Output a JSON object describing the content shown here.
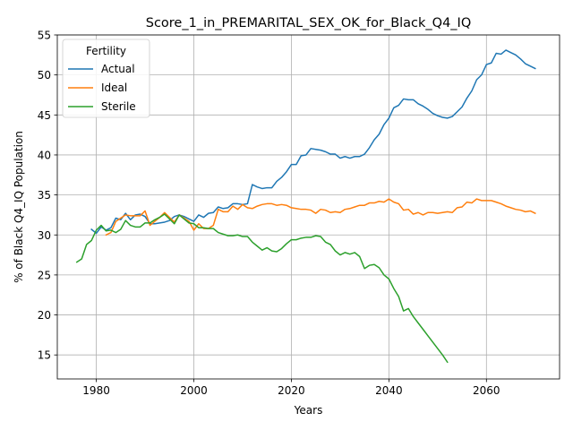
{
  "chart_data": {
    "type": "line",
    "title": "Score_1_in_PREMARITAL_SEX_OK_for_Black_Q4_IQ",
    "xlabel": "Years",
    "ylabel": "% of Black Q4_IQ Population",
    "xlim": [
      1972,
      2075
    ],
    "ylim": [
      12,
      55
    ],
    "xticks": [
      1980,
      2000,
      2020,
      2040,
      2060
    ],
    "yticks": [
      15,
      20,
      25,
      30,
      35,
      40,
      45,
      50,
      55
    ],
    "grid": true,
    "legend": {
      "title": "Fertility",
      "position": "top-left"
    },
    "series": [
      {
        "name": "Actual",
        "color": "#1f77b4",
        "x": [
          1979,
          1980,
          1981,
          1982,
          1983,
          1984,
          1985,
          1986,
          1987,
          1988,
          1989,
          1990,
          1991,
          1992,
          1993,
          1994,
          1995,
          1996,
          1997,
          1998,
          1999,
          2000,
          2001,
          2002,
          2003,
          2004,
          2005,
          2006,
          2007,
          2008,
          2009,
          2010,
          2011,
          2012,
          2013,
          2014,
          2015,
          2016,
          2017,
          2018,
          2019,
          2020,
          2021,
          2022,
          2023,
          2024,
          2025,
          2026,
          2027,
          2028,
          2029,
          2030,
          2031,
          2032,
          2033,
          2034,
          2035,
          2036,
          2037,
          2038,
          2039,
          2040,
          2041,
          2042,
          2043,
          2044,
          2045,
          2046,
          2047,
          2048,
          2049,
          2050,
          2051,
          2052,
          2053,
          2054,
          2055,
          2056,
          2057,
          2058,
          2059,
          2060,
          2061,
          2062,
          2063,
          2064,
          2065,
          2066,
          2067,
          2068,
          2069,
          2070
        ],
        "y": [
          30.7,
          30.2,
          31.0,
          30.6,
          30.9,
          32.1,
          31.9,
          32.7,
          31.9,
          32.5,
          32.6,
          32.3,
          31.4,
          31.4,
          31.5,
          31.6,
          31.8,
          32.3,
          32.5,
          32.3,
          32.0,
          31.7,
          32.5,
          32.2,
          32.7,
          32.8,
          33.5,
          33.3,
          33.4,
          33.9,
          33.9,
          33.8,
          33.9,
          36.3,
          36.0,
          35.8,
          35.9,
          35.9,
          36.7,
          37.2,
          37.9,
          38.8,
          38.8,
          39.9,
          40.0,
          40.8,
          40.7,
          40.6,
          40.4,
          40.1,
          40.1,
          39.6,
          39.8,
          39.6,
          39.8,
          39.8,
          40.1,
          40.9,
          41.9,
          42.6,
          43.8,
          44.6,
          45.9,
          46.2,
          47.0,
          46.9,
          46.9,
          46.4,
          46.1,
          45.7,
          45.2,
          44.9,
          44.7,
          44.6,
          44.8,
          45.4,
          46.0,
          47.1,
          48.0,
          49.4,
          50.0,
          51.3,
          51.5,
          52.7,
          52.6,
          53.1,
          52.8,
          52.5,
          52.0,
          51.4,
          51.1,
          50.8
        ]
      },
      {
        "name": "Ideal",
        "color": "#ff7f0e",
        "x": [
          1982,
          1983,
          1984,
          1985,
          1986,
          1987,
          1988,
          1989,
          1990,
          1991,
          1992,
          1993,
          1994,
          1995,
          1996,
          1997,
          1998,
          1999,
          2000,
          2001,
          2002,
          2003,
          2004,
          2005,
          2006,
          2007,
          2008,
          2009,
          2010,
          2011,
          2012,
          2013,
          2014,
          2015,
          2016,
          2017,
          2018,
          2019,
          2020,
          2021,
          2022,
          2023,
          2024,
          2025,
          2026,
          2027,
          2028,
          2029,
          2030,
          2031,
          2032,
          2033,
          2034,
          2035,
          2036,
          2037,
          2038,
          2039,
          2040,
          2041,
          2042,
          2043,
          2044,
          2045,
          2046,
          2047,
          2048,
          2049,
          2050,
          2051,
          2052,
          2053,
          2054,
          2055,
          2056,
          2057,
          2058,
          2059,
          2060,
          2061,
          2062,
          2063,
          2064,
          2065,
          2066,
          2067,
          2068,
          2069,
          2070
        ],
        "y": [
          30.0,
          30.3,
          31.7,
          32.1,
          32.5,
          32.4,
          32.4,
          32.4,
          33.0,
          31.2,
          31.7,
          32.2,
          32.8,
          32.2,
          31.6,
          32.5,
          32.1,
          31.7,
          30.6,
          31.4,
          30.8,
          30.8,
          31.2,
          33.2,
          32.9,
          32.9,
          33.6,
          33.2,
          33.8,
          33.4,
          33.3,
          33.6,
          33.8,
          33.9,
          33.9,
          33.7,
          33.8,
          33.7,
          33.4,
          33.3,
          33.2,
          33.2,
          33.1,
          32.7,
          33.2,
          33.1,
          32.8,
          32.9,
          32.8,
          33.2,
          33.3,
          33.5,
          33.7,
          33.7,
          34.0,
          34.0,
          34.2,
          34.1,
          34.5,
          34.1,
          33.9,
          33.1,
          33.2,
          32.6,
          32.8,
          32.5,
          32.8,
          32.8,
          32.7,
          32.8,
          32.9,
          32.8,
          33.4,
          33.5,
          34.1,
          34.0,
          34.5,
          34.3,
          34.3,
          34.3,
          34.1,
          33.9,
          33.6,
          33.4,
          33.2,
          33.1,
          32.9,
          33.0,
          32.7
        ]
      },
      {
        "name": "Sterile",
        "color": "#2ca02c",
        "x": [
          1976,
          1977,
          1978,
          1979,
          1980,
          1981,
          1982,
          1983,
          1984,
          1985,
          1986,
          1987,
          1988,
          1989,
          1990,
          1991,
          1992,
          1993,
          1994,
          1995,
          1996,
          1997,
          1998,
          1999,
          2000,
          2001,
          2002,
          2003,
          2004,
          2005,
          2006,
          2007,
          2008,
          2009,
          2010,
          2011,
          2012,
          2013,
          2014,
          2015,
          2016,
          2017,
          2018,
          2019,
          2020,
          2021,
          2022,
          2023,
          2024,
          2025,
          2026,
          2027,
          2028,
          2029,
          2030,
          2031,
          2032,
          2033,
          2034,
          2035,
          2036,
          2037,
          2038,
          2039,
          2040,
          2041,
          2042,
          2043,
          2044,
          2045,
          2046,
          2047,
          2048,
          2049,
          2050,
          2051,
          2052
        ],
        "y": [
          26.6,
          27.0,
          28.8,
          29.3,
          30.6,
          31.2,
          30.5,
          30.6,
          30.3,
          30.7,
          31.8,
          31.2,
          31.0,
          31.0,
          31.5,
          31.5,
          31.9,
          32.2,
          32.6,
          32.0,
          31.4,
          32.5,
          32.0,
          31.5,
          31.4,
          30.9,
          30.9,
          30.8,
          30.8,
          30.3,
          30.1,
          29.9,
          29.9,
          30.0,
          29.8,
          29.8,
          29.1,
          28.6,
          28.1,
          28.4,
          28.0,
          27.9,
          28.3,
          28.9,
          29.4,
          29.4,
          29.6,
          29.7,
          29.7,
          29.9,
          29.8,
          29.1,
          28.8,
          28.0,
          27.5,
          27.8,
          27.6,
          27.8,
          27.3,
          25.8,
          26.2,
          26.3,
          25.9,
          25.0,
          24.5,
          23.3,
          22.3,
          20.5,
          20.8,
          19.8,
          19.0,
          18.2,
          17.4,
          16.6,
          15.8,
          15.0,
          14.1
        ]
      }
    ]
  }
}
